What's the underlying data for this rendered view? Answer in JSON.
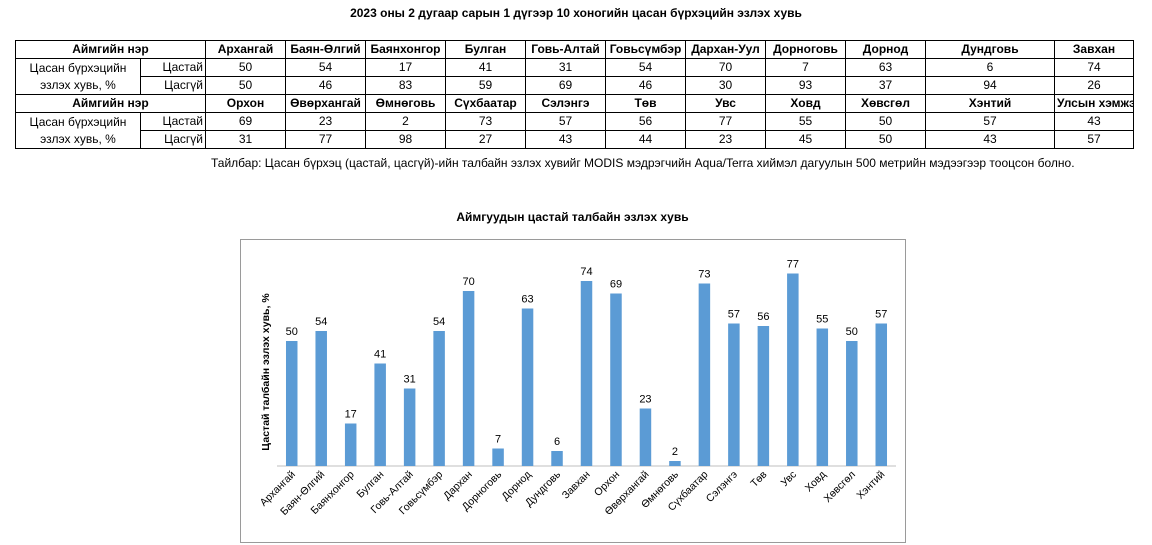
{
  "title": "2023 оны 2 дугаар сарын 1 дүгээр 10 хоногийн цасан бүрхэцийн эзлэх хувь",
  "table": {
    "header_label": "Аймгийн нэр",
    "row_group_label": "Цасан бүрхэцийн эзлэх хувь, %",
    "snow_label": "Цастай",
    "nosnow_label": "Цасгүй",
    "part1": {
      "names": [
        "Архангай",
        "Баян-Өлгий",
        "Баянхонгор",
        "Булган",
        "Говь-Алтай",
        "Говьсүмбэр",
        "Дархан-Уул",
        "Дорноговь",
        "Дорнод",
        "Дундговь",
        "Завхан"
      ],
      "snow": [
        "50",
        "54",
        "17",
        "41",
        "31",
        "54",
        "70",
        "7",
        "63",
        "6",
        "74"
      ],
      "nosnow": [
        "50",
        "46",
        "83",
        "59",
        "69",
        "46",
        "30",
        "93",
        "37",
        "94",
        "26"
      ]
    },
    "part2": {
      "names": [
        "Орхон",
        "Өвөрхангай",
        "Өмнөговь",
        "Сүхбаатар",
        "Сэлэнгэ",
        "Төв",
        "Увс",
        "Ховд",
        "Хөвсгөл",
        "Хэнтий",
        "Улсын хэмжээнд"
      ],
      "snow": [
        "69",
        "23",
        "2",
        "73",
        "57",
        "56",
        "77",
        "55",
        "50",
        "57",
        "43"
      ],
      "nosnow": [
        "31",
        "77",
        "98",
        "27",
        "43",
        "44",
        "23",
        "45",
        "50",
        "43",
        "57"
      ]
    }
  },
  "note": "Тайлбар: Цасан бүрхэц (цастай, цасгүй)-ийн талбайн эзлэх хувийг MODIS мэдрэгчийн Aqua/Terra хиймэл дагуулын 500 метрийн мэдээгээр тооцсон болно.",
  "chart_data": {
    "type": "bar",
    "title": "Аймгуудын цастай талбайн эзлэх хувь",
    "ylabel": "Цастай талбайн эзлэх хувь, %",
    "xlabel": "",
    "categories": [
      "Архангай",
      "Баян-Өлгий",
      "Баянхонгор",
      "Булган",
      "Говь-Алтай",
      "Говьсүмбэр",
      "Дархан",
      "Дорноговь",
      "Дорнод",
      "Дундговь",
      "Завхан",
      "Орхон",
      "Өвөрхангай",
      "Өмнөговь",
      "Сүхбаатар",
      "Сэлэнгэ",
      "Төв",
      "Увс",
      "Ховд",
      "Хөвсгөл",
      "Хэнтий"
    ],
    "values": [
      50,
      54,
      17,
      41,
      31,
      54,
      70,
      7,
      63,
      6,
      74,
      69,
      23,
      2,
      73,
      57,
      56,
      77,
      55,
      50,
      57
    ],
    "ylim": [
      0,
      80
    ],
    "grid": false,
    "data_labels": true,
    "bar_color": "#5b9bd5"
  }
}
